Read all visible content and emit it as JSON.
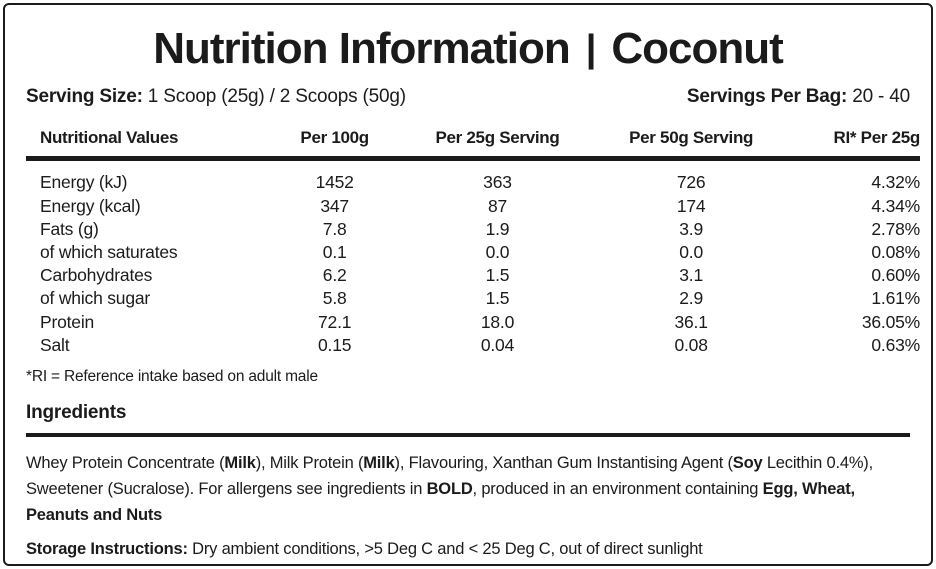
{
  "colors": {
    "text": "#1b1b1b",
    "border": "#1b1b1b",
    "background": "#ffffff"
  },
  "header": {
    "title": "Nutrition Information",
    "divider": "|",
    "flavor": "Coconut"
  },
  "serving": {
    "size": [
      {
        "t": "Serving Size:",
        "b": true
      },
      {
        "t": " 1 Scoop (25g) / 2 Scoops (50g)",
        "b": false
      }
    ],
    "per_bag": [
      {
        "t": "Servings Per Bag:",
        "b": true
      },
      {
        "t": " 20 - 40",
        "b": false
      }
    ]
  },
  "table": {
    "columns": [
      "Nutritional Values",
      "Per 100g",
      "Per 25g Serving",
      "Per 50g Serving",
      "RI* Per 25g"
    ],
    "rows": [
      [
        "Energy (kJ)",
        "1452",
        "363",
        "726",
        "4.32%"
      ],
      [
        "Energy (kcal)",
        "347",
        "87",
        "174",
        "4.34%"
      ],
      [
        "Fats (g)",
        "7.8",
        "1.9",
        "3.9",
        "2.78%"
      ],
      [
        "of which saturates",
        "0.1",
        "0.0",
        "0.0",
        "0.08%"
      ],
      [
        "Carbohydrates",
        "6.2",
        "1.5",
        "3.1",
        "0.60%"
      ],
      [
        "of which sugar",
        "5.8",
        "1.5",
        "2.9",
        "1.61%"
      ],
      [
        "Protein",
        "72.1",
        "18.0",
        "36.1",
        "36.05%"
      ],
      [
        "Salt",
        "0.15",
        "0.04",
        "0.08",
        "0.63%"
      ]
    ],
    "footnote": "*RI = Reference intake based on adult male"
  },
  "ingredients": {
    "heading": "Ingredients",
    "text": [
      {
        "t": "Whey Protein Concentrate (",
        "b": false
      },
      {
        "t": "Milk",
        "b": true
      },
      {
        "t": "), Milk Protein (",
        "b": false
      },
      {
        "t": "Milk",
        "b": true
      },
      {
        "t": "), Flavouring, Xanthan Gum Instantising Agent (",
        "b": false
      },
      {
        "t": "Soy",
        "b": true
      },
      {
        "t": " Lecithin 0.4%), Sweetener (Sucralose). For allergens see ingredients in ",
        "b": false
      },
      {
        "t": "BOLD",
        "b": true
      },
      {
        "t": ", produced in an environment containing ",
        "b": false
      },
      {
        "t": "Egg, Wheat, Peanuts and Nuts",
        "b": true
      }
    ]
  },
  "storage": [
    {
      "t": "Storage Instructions:",
      "b": true
    },
    {
      "t": " Dry ambient conditions, >5 Deg C and < 25 Deg C,  out of direct sunlight",
      "b": false
    }
  ]
}
